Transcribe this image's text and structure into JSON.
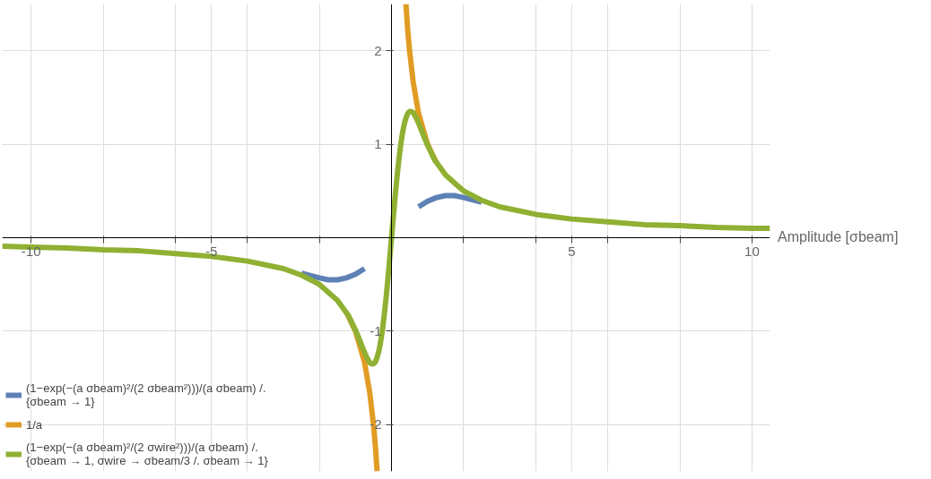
{
  "chart_data": {
    "type": "line",
    "xlabel": "Amplitude [σbeam]",
    "xlim": [
      -10.8,
      10.5
    ],
    "ylim": [
      -2.5,
      2.5
    ],
    "xticks": [
      -10,
      {
        "value": -8,
        "label": null
      },
      {
        "value": -6,
        "label": null
      },
      -5,
      {
        "value": -4,
        "label": null
      },
      {
        "value": -2,
        "label": null
      },
      {
        "value": 2,
        "label": null
      },
      {
        "value": 4,
        "label": null
      },
      5,
      {
        "value": 6,
        "label": null
      },
      {
        "value": 8,
        "label": null
      },
      10
    ],
    "yticks": [
      -2,
      -1,
      1,
      2
    ],
    "grid": true,
    "legend": "bottom left",
    "line_style": "solid",
    "marker": "none",
    "series": [
      {
        "name": "(1−exp(−(a σbeam)²/(2 σbeam²)))/(a σbeam) /. {σbeam → 1}",
        "color": "#5e81b5",
        "x": [
          -2.5,
          -2,
          -1.75,
          -1.5,
          -1.25,
          -1,
          -0.75,
          0,
          0.75,
          1,
          1.25,
          1.5,
          1.75,
          2,
          2.5
        ],
        "values": [
          -0.38,
          -0.43,
          -0.45,
          -0.45,
          -0.43,
          -0.39,
          -0.33,
          null,
          0.33,
          0.39,
          0.43,
          0.45,
          0.45,
          0.43,
          0.38
        ]
      },
      {
        "name": "1/a",
        "color": "#e19c24",
        "x": [
          -1.25,
          -1,
          -0.75,
          -0.6,
          -0.5,
          -0.45,
          -0.4,
          0,
          0.4,
          0.45,
          0.5,
          0.6,
          0.75,
          1,
          1.25
        ],
        "values": [
          -0.8,
          -1,
          -1.33,
          -1.67,
          -2,
          -2.22,
          -2.5,
          null,
          2.5,
          2.22,
          2,
          1.67,
          1.33,
          1,
          0.8
        ]
      },
      {
        "name": "(1−exp(−(a σbeam)²/(2 σwire²)))/(a σbeam) /. {σbeam → 1, σwire → σbeam/3 /. σbeam → 1}",
        "color": "#8fb032",
        "x": [
          -10.8,
          -10,
          -9,
          -8,
          -7,
          -6,
          -5,
          -4,
          -3,
          -2.5,
          -2,
          -1.5,
          -1.2,
          -1,
          -0.9,
          -0.8,
          -0.7,
          -0.6,
          -0.55,
          -0.5,
          -0.45,
          -0.4,
          -0.35,
          -0.3,
          -0.25,
          -0.2,
          -0.15,
          -0.1,
          -0.05,
          0,
          0.05,
          0.1,
          0.15,
          0.2,
          0.25,
          0.3,
          0.35,
          0.4,
          0.45,
          0.5,
          0.55,
          0.6,
          0.7,
          0.8,
          0.9,
          1,
          1.2,
          1.5,
          2,
          2.5,
          3,
          4,
          5,
          6,
          7,
          8,
          9,
          10,
          10.5
        ],
        "values": [
          -0.09,
          -0.1,
          -0.11,
          -0.13,
          -0.14,
          -0.17,
          -0.2,
          -0.25,
          -0.33,
          -0.4,
          -0.5,
          -0.67,
          -0.83,
          -0.99,
          -1.08,
          -1.18,
          -1.27,
          -1.34,
          -1.35,
          -1.35,
          -1.33,
          -1.28,
          -1.21,
          -1.11,
          -0.98,
          -0.82,
          -0.64,
          -0.44,
          -0.22,
          0,
          0.22,
          0.44,
          0.64,
          0.82,
          0.98,
          1.11,
          1.21,
          1.28,
          1.33,
          1.35,
          1.35,
          1.34,
          1.27,
          1.18,
          1.08,
          0.99,
          0.83,
          0.67,
          0.5,
          0.4,
          0.33,
          0.25,
          0.2,
          0.17,
          0.14,
          0.13,
          0.11,
          0.1,
          0.1
        ]
      }
    ]
  }
}
